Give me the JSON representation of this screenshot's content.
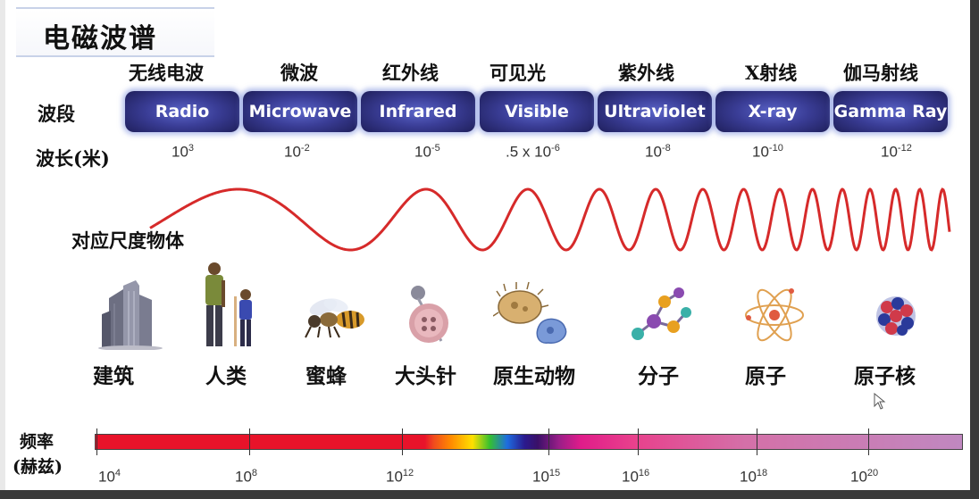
{
  "title": "电磁波谱",
  "rows": {
    "band_label": "波段",
    "wavelength_label": "波长(米)",
    "objects_label": "对应尺度物体",
    "frequency_label_line1": "频率",
    "frequency_label_line2": "(赫兹)"
  },
  "bands": [
    {
      "cn": "无线电波",
      "en": "Radio",
      "wl_base": "10",
      "wl_exp": "3"
    },
    {
      "cn": "微波",
      "en": "Microwave",
      "wl_base": "10",
      "wl_exp": "-2"
    },
    {
      "cn": "红外线",
      "en": "Infrared",
      "wl_base": "10",
      "wl_exp": "-5"
    },
    {
      "cn": "可见光",
      "en": "Visible",
      "wl_base": ".5 x 10",
      "wl_exp": "-6"
    },
    {
      "cn": "紫外线",
      "en": "Ultraviolet",
      "wl_base": "10",
      "wl_exp": "-8"
    },
    {
      "cn": "X射线",
      "en": "X-ray",
      "wl_base": "10",
      "wl_exp": "-10"
    },
    {
      "cn": "伽马射线",
      "en": "Gamma Ray",
      "wl_base": "10",
      "wl_exp": "-12"
    }
  ],
  "objects": [
    {
      "label": "建筑",
      "icon": "building-icon"
    },
    {
      "label": "人类",
      "icon": "humans-icon"
    },
    {
      "label": "蜜蜂",
      "icon": "bee-icon"
    },
    {
      "label": "大头针",
      "icon": "pin-icon"
    },
    {
      "label": "原生动物",
      "icon": "protozoa-icon"
    },
    {
      "label": "分子",
      "icon": "molecule-icon"
    },
    {
      "label": "原子",
      "icon": "atom-icon"
    },
    {
      "label": "原子核",
      "icon": "nucleus-icon"
    }
  ],
  "frequencies": [
    {
      "base": "10",
      "exp": "4"
    },
    {
      "base": "10",
      "exp": "8"
    },
    {
      "base": "10",
      "exp": "12"
    },
    {
      "base": "10",
      "exp": "15"
    },
    {
      "base": "10",
      "exp": "16"
    },
    {
      "base": "10",
      "exp": "18"
    },
    {
      "base": "10",
      "exp": "20"
    }
  ],
  "colors": {
    "band_fill": "#3a3d96",
    "wave": "#d62a2a"
  }
}
